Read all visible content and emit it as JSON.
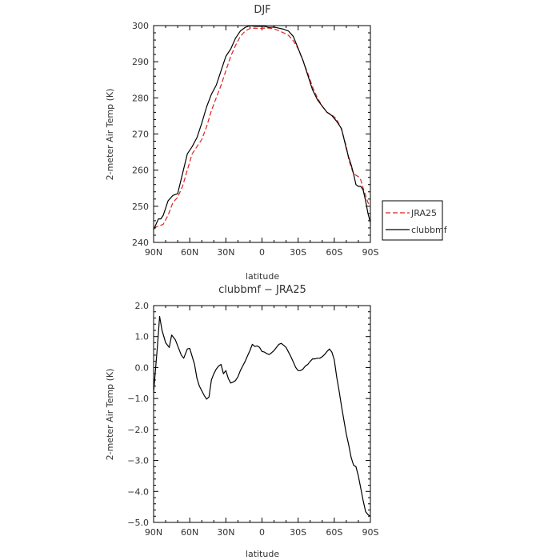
{
  "chart_data": [
    {
      "type": "line",
      "title": "DJF",
      "xlabel": "latitude",
      "ylabel": "2-meter Air Temp (K)",
      "xlim": [
        -90,
        90
      ],
      "ylim": [
        240,
        300
      ],
      "x_ticks": [
        -90,
        -60,
        -30,
        0,
        30,
        60,
        90
      ],
      "x_tick_labels": [
        "90N",
        "60N",
        "30N",
        "0",
        "30S",
        "60S",
        "90S"
      ],
      "y_ticks": [
        240,
        250,
        260,
        270,
        280,
        290,
        300
      ],
      "y_tick_labels": [
        "240",
        "250",
        "260",
        "270",
        "280",
        "290",
        "300"
      ],
      "legend": {
        "position": "right",
        "entries": [
          "JRA25",
          "clubbmf"
        ]
      },
      "series": [
        {
          "name": "JRA25",
          "color": "#dd2222",
          "dash": "dashed",
          "x": [
            -90,
            -86,
            -82,
            -78,
            -74,
            -70,
            -66,
            -62,
            -58,
            -54,
            -50,
            -46,
            -42,
            -38,
            -34,
            -30,
            -26,
            -22,
            -18,
            -14,
            -10,
            -6,
            -2,
            2,
            6,
            10,
            14,
            18,
            22,
            26,
            30,
            34,
            38,
            42,
            46,
            50,
            54,
            58,
            62,
            66,
            70,
            72,
            74,
            76,
            78,
            80,
            82,
            84,
            86,
            88,
            90
          ],
          "y": [
            244,
            244.5,
            245,
            247.5,
            251,
            252.5,
            255.5,
            260,
            264.5,
            266.5,
            268.5,
            272,
            276.5,
            280,
            283.5,
            287.5,
            291.5,
            294.5,
            297,
            298.5,
            299.2,
            299.3,
            299.2,
            299.3,
            299.3,
            299.1,
            298.6,
            298,
            297.3,
            295.8,
            293.6,
            290.3,
            286.8,
            283,
            280,
            277.7,
            276,
            275.3,
            274.1,
            271.3,
            266.5,
            263,
            260.8,
            259,
            258.6,
            258.2,
            257.3,
            255,
            253,
            251,
            250
          ]
        },
        {
          "name": "clubbmf",
          "color": "#000000",
          "dash": "solid",
          "x": [
            -90,
            -88,
            -86,
            -84,
            -82,
            -78,
            -74,
            -70,
            -66,
            -62,
            -58,
            -54,
            -50,
            -46,
            -42,
            -38,
            -34,
            -30,
            -26,
            -22,
            -18,
            -14,
            -10,
            -6,
            -2,
            2,
            6,
            10,
            14,
            18,
            22,
            26,
            30,
            34,
            38,
            42,
            46,
            50,
            54,
            58,
            62,
            66,
            70,
            72,
            74,
            76,
            78,
            80,
            82,
            84,
            86,
            88,
            90
          ],
          "y": [
            243.5,
            245,
            246.5,
            246.5,
            247.5,
            251.5,
            253,
            253.5,
            259,
            264.5,
            266.5,
            269,
            273,
            277.5,
            281,
            283.5,
            287.5,
            291.5,
            293.5,
            296.5,
            298.5,
            299.5,
            300,
            299.8,
            299.8,
            299.8,
            299.5,
            299.6,
            299.3,
            299,
            298.5,
            297,
            293.7,
            290.4,
            286.3,
            282.2,
            279.5,
            277.7,
            276,
            275.1,
            273.5,
            271.5,
            266,
            263.5,
            261.5,
            259,
            256,
            255.5,
            255.5,
            254.5,
            251.5,
            248,
            245.5
          ]
        }
      ]
    },
    {
      "type": "line",
      "title": "clubbmf − JRA25",
      "xlabel": "latitude",
      "ylabel": "2-meter Air Temp (K)",
      "xlim": [
        -90,
        90
      ],
      "ylim": [
        -5,
        2
      ],
      "x_ticks": [
        -90,
        -60,
        -30,
        0,
        30,
        60,
        90
      ],
      "x_tick_labels": [
        "90N",
        "60N",
        "30N",
        "0",
        "30S",
        "60S",
        "90S"
      ],
      "y_ticks": [
        -5,
        -4,
        -3,
        -2,
        -1,
        0,
        1,
        2
      ],
      "y_tick_labels": [
        "−5.0",
        "−4.0",
        "−3.0",
        "−2.0",
        "−1.0",
        "0.0",
        "1.0",
        "2.0"
      ],
      "series": [
        {
          "color": "#000000",
          "dash": "solid",
          "x": [
            -90,
            -87,
            -85,
            -83,
            -80,
            -77,
            -75,
            -72,
            -70,
            -67,
            -65,
            -62,
            -60,
            -56,
            -54,
            -52,
            -50,
            -48,
            -46,
            -44,
            -42,
            -40,
            -38,
            -36,
            -34,
            -32,
            -30,
            -28,
            -26,
            -24,
            -22,
            -20,
            -18,
            -16,
            -14,
            -12,
            -10,
            -8,
            -6,
            -4,
            -2,
            0,
            2,
            4,
            6,
            8,
            10,
            12,
            14,
            16,
            18,
            20,
            22,
            24,
            26,
            28,
            30,
            32,
            34,
            36,
            38,
            40,
            42,
            44,
            46,
            48,
            50,
            52,
            54,
            56,
            58,
            60,
            62,
            64,
            66,
            68,
            70,
            72,
            74,
            76,
            78,
            80,
            82,
            84,
            86,
            88,
            90
          ],
          "y": [
            -0.8,
            0.6,
            1.65,
            1.2,
            0.8,
            0.65,
            1.05,
            0.9,
            0.7,
            0.4,
            0.3,
            0.6,
            0.62,
            0.1,
            -0.35,
            -0.6,
            -0.75,
            -0.9,
            -1.02,
            -0.95,
            -0.4,
            -0.2,
            -0.05,
            0.05,
            0.1,
            -0.2,
            -0.1,
            -0.35,
            -0.5,
            -0.47,
            -0.42,
            -0.3,
            -0.1,
            0.05,
            0.2,
            0.38,
            0.55,
            0.75,
            0.68,
            0.7,
            0.65,
            0.52,
            0.5,
            0.45,
            0.42,
            0.48,
            0.55,
            0.65,
            0.75,
            0.78,
            0.72,
            0.65,
            0.5,
            0.35,
            0.18,
            0.0,
            -0.1,
            -0.1,
            -0.05,
            0.05,
            0.1,
            0.2,
            0.28,
            0.28,
            0.3,
            0.3,
            0.35,
            0.42,
            0.52,
            0.6,
            0.5,
            0.25,
            -0.3,
            -0.75,
            -1.25,
            -1.7,
            -2.15,
            -2.5,
            -2.9,
            -3.15,
            -3.2,
            -3.5,
            -3.9,
            -4.3,
            -4.65,
            -4.75,
            -4.8
          ]
        }
      ]
    }
  ]
}
